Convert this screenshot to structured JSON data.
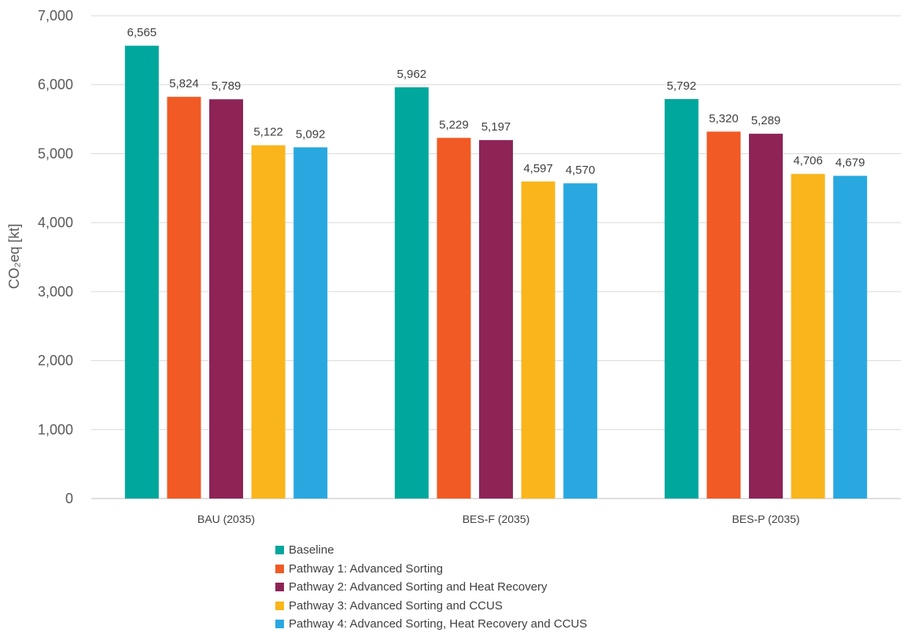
{
  "chart_data": {
    "type": "bar",
    "ylabel": "CO₂eq [kt]",
    "ylim": [
      0,
      7000
    ],
    "yticks": [
      0,
      1000,
      2000,
      3000,
      4000,
      5000,
      6000,
      7000
    ],
    "ytick_labels": [
      "0",
      "1,000",
      "2,000",
      "3,000",
      "4,000",
      "5,000",
      "6,000",
      "7,000"
    ],
    "grid": true,
    "legend_position": "bottom",
    "categories": [
      "BAU (2035)",
      "BES-F (2035)",
      "BES-P (2035)"
    ],
    "series": [
      {
        "name": "Baseline",
        "color": "#00A79D",
        "values": [
          6565,
          5962,
          5792
        ],
        "labels": [
          "6,565",
          "5,962",
          "5,792"
        ]
      },
      {
        "name": "Pathway 1: Advanced Sorting",
        "color": "#F15A24",
        "values": [
          5824,
          5229,
          5320
        ],
        "labels": [
          "5,824",
          "5,229",
          "5,320"
        ]
      },
      {
        "name": "Pathway 2: Advanced Sorting and Heat Recovery",
        "color": "#8E2356",
        "values": [
          5789,
          5197,
          5289
        ],
        "labels": [
          "5,789",
          "5,197",
          "5,289"
        ]
      },
      {
        "name": "Pathway 3: Advanced Sorting and CCUS",
        "color": "#F9B51B",
        "values": [
          5122,
          4597,
          4706
        ],
        "labels": [
          "5,122",
          "4,597",
          "4,706"
        ]
      },
      {
        "name": "Pathway 4: Advanced Sorting, Heat Recovery and CCUS",
        "color": "#29A8E0",
        "values": [
          5092,
          4570,
          4679
        ],
        "labels": [
          "5,092",
          "4,570",
          "4,679"
        ]
      }
    ]
  }
}
